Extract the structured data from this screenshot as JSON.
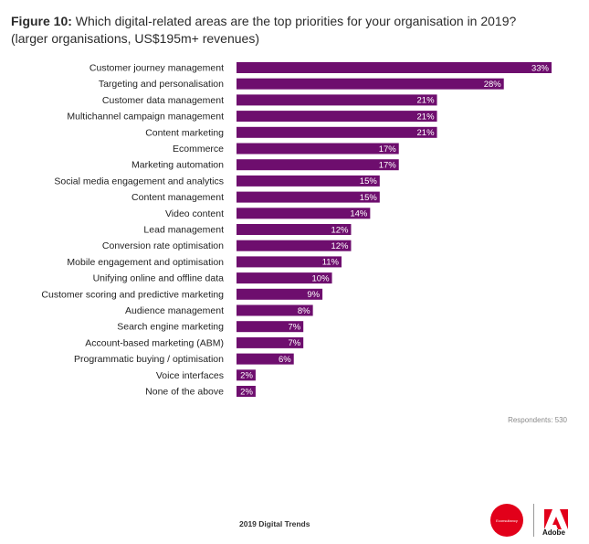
{
  "figure": {
    "title_prefix": "Figure 10:",
    "title_text": "Which digital-related areas are the top priorities for your organisation in 2019?",
    "subtitle": "(larger organisations, US$195m+ revenues)"
  },
  "chart_data": {
    "type": "bar",
    "orientation": "horizontal",
    "categories": [
      "Customer journey management",
      "Targeting and personalisation",
      "Customer data management",
      "Multichannel campaign management",
      "Content marketing",
      "Ecommerce",
      "Marketing automation",
      "Social media engagement and analytics",
      "Content management",
      "Video content",
      "Lead management",
      "Conversion rate optimisation",
      "Mobile engagement and optimisation",
      "Unifying online and offline data",
      "Customer scoring and predictive marketing",
      "Audience management",
      "Search engine marketing",
      "Account-based marketing (ABM)",
      "Programmatic buying / optimisation",
      "Voice interfaces",
      "None of the above"
    ],
    "values": [
      33,
      28,
      21,
      21,
      21,
      17,
      17,
      15,
      15,
      14,
      12,
      12,
      11,
      10,
      9,
      8,
      7,
      7,
      6,
      2,
      2
    ],
    "value_labels": [
      "33%",
      "28%",
      "21%",
      "21%",
      "21%",
      "17%",
      "17%",
      "15%",
      "15%",
      "14%",
      "12%",
      "12%",
      "11%",
      "10%",
      "9%",
      "8%",
      "7%",
      "7%",
      "6%",
      "2%",
      "2%"
    ],
    "unit": "%",
    "xlim": [
      0,
      33
    ],
    "bar_color": "#6e0e6e",
    "grid": false,
    "legend": "none"
  },
  "respondents": "Respondents: 530",
  "footer": {
    "report_title": "2019 Digital Trends",
    "partner_logo_text": "Econsultancy",
    "brand_name": "Adobe"
  },
  "colors": {
    "bar": "#6e0e6e",
    "partner_logo": "#e2001a",
    "adobe": "#e2001a"
  }
}
